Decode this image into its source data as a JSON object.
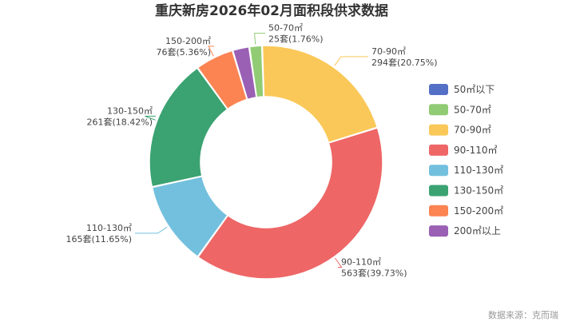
{
  "chart_data": {
    "type": "pie",
    "title": "重庆新房2026年02月面积段供求数据",
    "source": "数据来源：克而瑞",
    "series": [
      {
        "name": "50㎡以下",
        "units": 0,
        "percent": 0.0,
        "color": "#5470c6",
        "label_area": "",
        "label_value": ""
      },
      {
        "name": "50-70㎡",
        "units": 25,
        "percent": 1.76,
        "color": "#91cc75",
        "label_area": "50-70㎡",
        "label_value": "25套(1.76%)"
      },
      {
        "name": "70-90㎡",
        "units": 294,
        "percent": 20.75,
        "color": "#fac858",
        "label_area": "70-90㎡",
        "label_value": "294套(20.75%)"
      },
      {
        "name": "90-110㎡",
        "units": 563,
        "percent": 39.73,
        "color": "#ee6666",
        "label_area": "90-110㎡",
        "label_value": "563套(39.73%)"
      },
      {
        "name": "110-130㎡",
        "units": 165,
        "percent": 11.65,
        "color": "#73c0de",
        "label_area": "110-130㎡",
        "label_value": "165套(11.65%)"
      },
      {
        "name": "130-150㎡",
        "units": 261,
        "percent": 18.42,
        "color": "#3ba272",
        "label_area": "130-150㎡",
        "label_value": "261套(18.42%)"
      },
      {
        "name": "150-200㎡",
        "units": 76,
        "percent": 5.36,
        "color": "#fc8452",
        "label_area": "150-200㎡",
        "label_value": "76套(5.36%)"
      },
      {
        "name": "200㎡以上",
        "units": 33,
        "percent": 2.33,
        "color": "#9a60b4",
        "label_area": "",
        "label_value": ""
      }
    ],
    "legend_position": "right"
  }
}
